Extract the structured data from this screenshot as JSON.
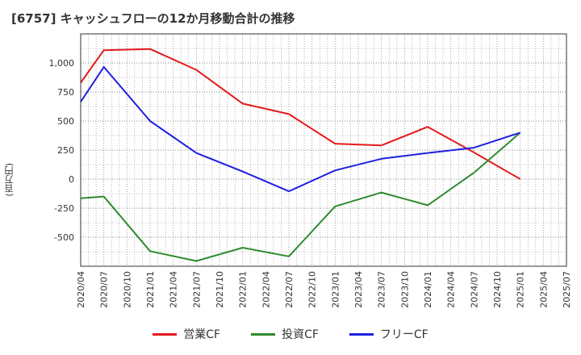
{
  "title": "[6757]  キャッシュフローの12か月移動合計の推移",
  "colors": {
    "operating": "#e41a1c",
    "investing": "#2e8b2e",
    "free": "#1f1fe0",
    "grid": "#888888",
    "axis": "#333333"
  },
  "chart_data": {
    "type": "line",
    "title": "[6757]  キャッシュフローの12か月移動合計の推移",
    "xlabel": "",
    "ylabel": "(百万円)",
    "ylim": [
      -750,
      1250
    ],
    "grid": true,
    "legend_position": "bottom",
    "x_ticks": [
      "2020/04",
      "2020/07",
      "2020/10",
      "2021/01",
      "2021/04",
      "2021/07",
      "2021/10",
      "2022/01",
      "2022/04",
      "2022/07",
      "2022/10",
      "2023/01",
      "2023/04",
      "2023/07",
      "2023/10",
      "2024/01",
      "2024/04",
      "2024/07",
      "2024/10",
      "2025/01",
      "2025/04",
      "2025/07"
    ],
    "y_ticks": [
      {
        "value": 1000,
        "label": "1,000"
      },
      {
        "value": 750,
        "label": "750"
      },
      {
        "value": 500,
        "label": "500"
      },
      {
        "value": 250,
        "label": "250"
      },
      {
        "value": 0,
        "label": "0"
      },
      {
        "value": -250,
        "label": "-250"
      },
      {
        "value": -500,
        "label": "-500"
      }
    ],
    "series": [
      {
        "name": "営業CF",
        "color_key": "operating",
        "points": [
          {
            "x": 0,
            "y": 830
          },
          {
            "x": 1,
            "y": 1110
          },
          {
            "x": 3,
            "y": 1120
          },
          {
            "x": 5,
            "y": 940
          },
          {
            "x": 7,
            "y": 650
          },
          {
            "x": 9,
            "y": 560
          },
          {
            "x": 11,
            "y": 305
          },
          {
            "x": 13,
            "y": 290
          },
          {
            "x": 15,
            "y": 450
          },
          {
            "x": 17,
            "y": 230
          },
          {
            "x": 19,
            "y": 0
          }
        ]
      },
      {
        "name": "投資CF",
        "color_key": "investing",
        "points": [
          {
            "x": 0,
            "y": -165
          },
          {
            "x": 1,
            "y": -150
          },
          {
            "x": 3,
            "y": -620
          },
          {
            "x": 5,
            "y": -705
          },
          {
            "x": 7,
            "y": -590
          },
          {
            "x": 9,
            "y": -665
          },
          {
            "x": 11,
            "y": -235
          },
          {
            "x": 13,
            "y": -115
          },
          {
            "x": 15,
            "y": -225
          },
          {
            "x": 17,
            "y": 55
          },
          {
            "x": 19,
            "y": 400
          }
        ]
      },
      {
        "name": "フリーCF",
        "color_key": "free",
        "points": [
          {
            "x": 0,
            "y": 665
          },
          {
            "x": 1,
            "y": 965
          },
          {
            "x": 3,
            "y": 500
          },
          {
            "x": 5,
            "y": 225
          },
          {
            "x": 7,
            "y": 65
          },
          {
            "x": 9,
            "y": -105
          },
          {
            "x": 11,
            "y": 75
          },
          {
            "x": 13,
            "y": 175
          },
          {
            "x": 15,
            "y": 225
          },
          {
            "x": 17,
            "y": 270
          },
          {
            "x": 19,
            "y": 400
          }
        ]
      }
    ]
  }
}
